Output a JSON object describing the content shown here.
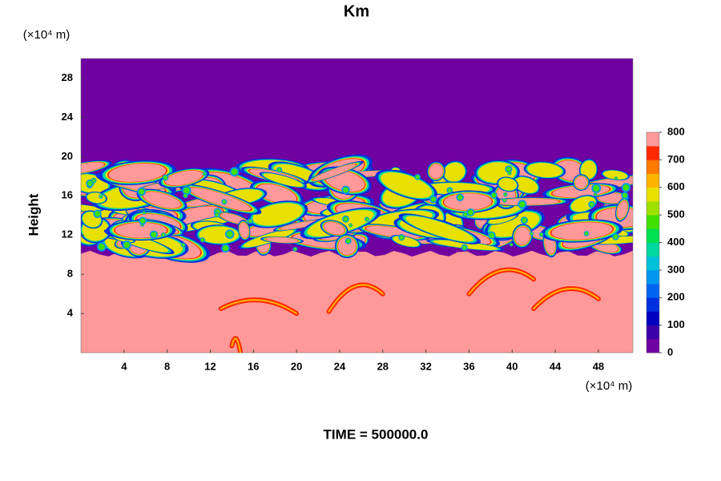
{
  "chart_data": {
    "type": "contour",
    "title": "Km",
    "x_unit": "(×10⁴ m)",
    "y_unit": "(×10⁴ m)",
    "ylabel": "Height",
    "footer": "TIME = 500000.0",
    "xlim": [
      0,
      51.2
    ],
    "ylim": [
      0,
      30
    ],
    "xticks": [
      4,
      8,
      12,
      16,
      20,
      24,
      28,
      32,
      36,
      40,
      44,
      48
    ],
    "yticks": [
      4,
      8,
      12,
      16,
      20,
      24,
      28
    ],
    "colorbar": {
      "lim": [
        0,
        800
      ],
      "ticks": [
        0,
        100,
        200,
        300,
        400,
        500,
        600,
        700,
        800
      ],
      "colors": [
        "#7000a0",
        "#3c00a8",
        "#0000c0",
        "#0030e0",
        "#0064f0",
        "#0096f0",
        "#00c0d8",
        "#00d8a0",
        "#00e050",
        "#40e000",
        "#a0e000",
        "#e8e000",
        "#ffb400",
        "#ff7800",
        "#ff2800",
        "#ff9999"
      ]
    }
  }
}
